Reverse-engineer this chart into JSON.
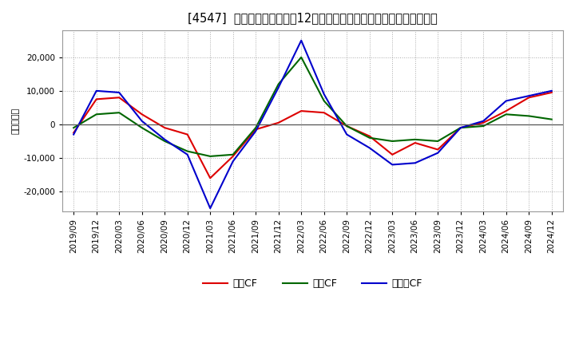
{
  "title": "[4547]  キャッシュフローの12か月移動合計の対前年同期増減額の推移",
  "ylabel": "（百万円）",
  "background_color": "#ffffff",
  "plot_bg_color": "#ffffff",
  "grid_color": "#aaaaaa",
  "x_labels": [
    "2019/09",
    "2019/12",
    "2020/03",
    "2020/06",
    "2020/09",
    "2020/12",
    "2021/03",
    "2021/06",
    "2021/09",
    "2021/12",
    "2022/03",
    "2022/06",
    "2022/09",
    "2022/12",
    "2023/03",
    "2023/06",
    "2023/09",
    "2023/12",
    "2024/03",
    "2024/06",
    "2024/09",
    "2024/12"
  ],
  "operating_cf": [
    -2500,
    7500,
    8000,
    3000,
    -1000,
    -3000,
    -16000,
    -9500,
    -1500,
    500,
    4000,
    3500,
    -500,
    -3500,
    -9000,
    -5500,
    -7500,
    -1000,
    500,
    4000,
    8000,
    9500
  ],
  "investing_cf": [
    -1000,
    3000,
    3500,
    -1000,
    -5000,
    -8000,
    -9500,
    -9000,
    -1000,
    12000,
    20000,
    7000,
    -500,
    -4000,
    -5000,
    -4500,
    -5000,
    -1000,
    -500,
    3000,
    2500,
    1500
  ],
  "free_cf": [
    -3000,
    10000,
    9500,
    1000,
    -4500,
    -9000,
    -25000,
    -11000,
    -2000,
    11000,
    25000,
    9000,
    -3000,
    -7000,
    -12000,
    -11500,
    -8500,
    -1000,
    1000,
    7000,
    8500,
    10000
  ],
  "operating_color": "#dd0000",
  "investing_color": "#006600",
  "free_color": "#0000cc",
  "ylim": [
    -26000,
    28000
  ],
  "yticks": [
    -20000,
    -10000,
    0,
    10000,
    20000
  ],
  "legend_labels": [
    "営業CF",
    "投資CF",
    "フリーCF"
  ]
}
